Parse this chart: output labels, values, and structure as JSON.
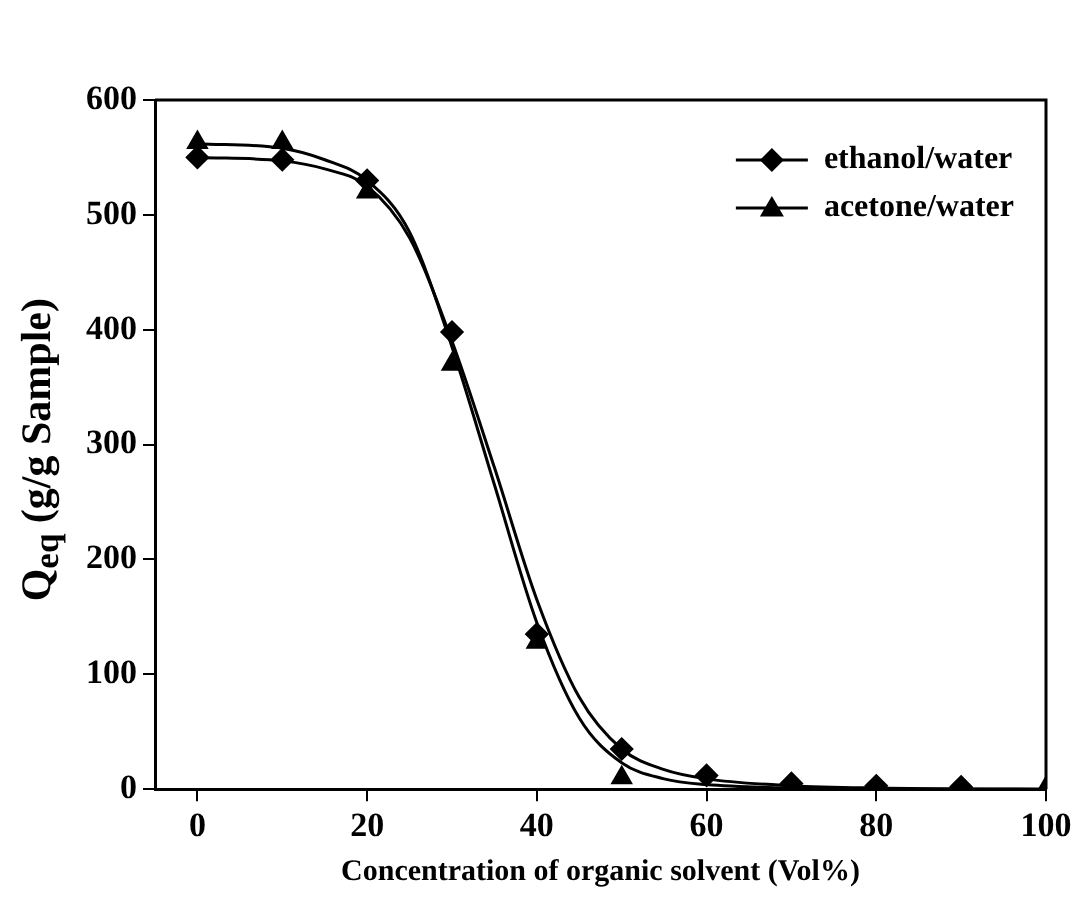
{
  "chart_data": {
    "type": "scatter",
    "xlabel": "Concentration of organic solvent (Vol%)",
    "ylabel": "Q$_{eq}$ (g/g Sample)",
    "xlim": [
      -5,
      100
    ],
    "xticks": [
      0,
      20,
      40,
      60,
      80,
      100
    ],
    "ylim": [
      0,
      600
    ],
    "yticks": [
      0,
      100,
      200,
      300,
      400,
      500,
      600
    ],
    "grid": false,
    "legend": "top right",
    "series": [
      {
        "name": "ethanol/water",
        "marker": "diamond",
        "color": "#000000",
        "x": [
          0,
          10,
          20,
          30,
          40,
          50,
          60,
          70,
          80,
          90
        ],
        "values": [
          550,
          548,
          530,
          398,
          135,
          35,
          12,
          5,
          3,
          2
        ]
      },
      {
        "name": "acetone/water",
        "marker": "triangle",
        "color": "#000000",
        "x": [
          0,
          10,
          20,
          30,
          40,
          50,
          60,
          70,
          80,
          90,
          100
        ],
        "values": [
          563,
          563,
          520,
          370,
          128,
          10,
          null,
          null,
          null,
          null,
          1
        ]
      },
      {
        "type": "line",
        "marker": "none",
        "color": "#000000",
        "x": [
          0,
          10,
          15,
          20,
          25,
          30,
          35,
          40,
          45,
          50,
          55,
          60,
          70,
          80,
          100
        ],
        "values": [
          550,
          547,
          540,
          525,
          480,
          390,
          280,
          165,
          80,
          35,
          17,
          9,
          3,
          1,
          0
        ]
      },
      {
        "type": "line",
        "marker": "none",
        "color": "#000000",
        "x": [
          0,
          10,
          15,
          20,
          25,
          30,
          35,
          40,
          45,
          50,
          55,
          60,
          70,
          80,
          100
        ],
        "values": [
          562,
          558,
          548,
          530,
          485,
          385,
          265,
          145,
          62,
          23,
          9,
          4,
          1,
          0,
          0
        ]
      }
    ]
  }
}
